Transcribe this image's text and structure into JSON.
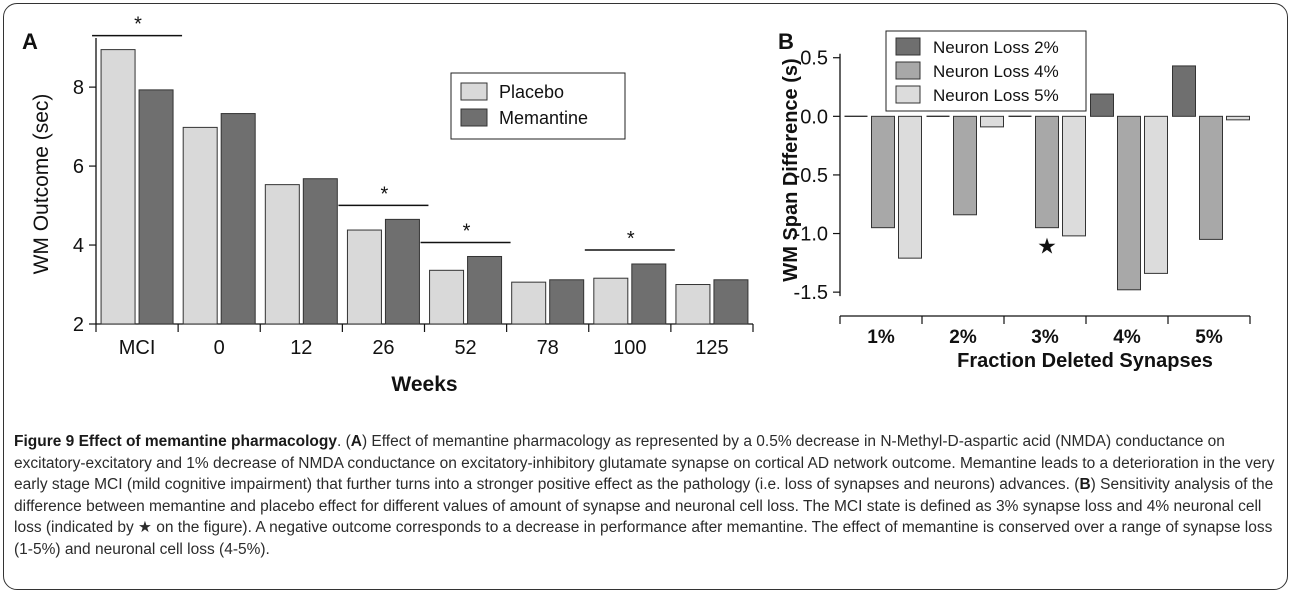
{
  "chart_data": [
    {
      "type": "bar",
      "panel_label": "A",
      "categories": [
        "MCI",
        "0",
        "12",
        "26",
        "52",
        "78",
        "100",
        "125"
      ],
      "series": [
        {
          "name": "Placebo",
          "color": "#d9d9d9",
          "values": [
            8.95,
            6.98,
            5.53,
            4.38,
            3.36,
            3.06,
            3.16,
            3.0
          ]
        },
        {
          "name": "Memantine",
          "color": "#6f6f6f",
          "values": [
            7.93,
            7.33,
            5.68,
            4.65,
            3.71,
            3.12,
            3.52,
            3.12
          ]
        }
      ],
      "xlabel": "Weeks",
      "ylabel": "WM Outcome (sec)",
      "ylim": [
        2,
        9.7
      ],
      "yticks": [
        "2",
        "4",
        "6",
        "8"
      ],
      "legend_position": "upper-right",
      "significance": [
        {
          "category": "MCI",
          "label": "*"
        },
        {
          "category": "26",
          "label": "*"
        },
        {
          "category": "52",
          "label": "*"
        },
        {
          "category": "100",
          "label": "*"
        }
      ]
    },
    {
      "type": "bar",
      "panel_label": "B",
      "categories": [
        "1%",
        "2%",
        "3%",
        "4%",
        "5%"
      ],
      "series": [
        {
          "name": "Neuron Loss 2%",
          "color": "#6f6f6f",
          "values": [
            0.0,
            0.0,
            0.0,
            0.19,
            0.43
          ]
        },
        {
          "name": "Neuron Loss 4%",
          "color": "#a8a8a8",
          "values": [
            -0.95,
            -0.84,
            -0.95,
            -1.48,
            -1.05
          ]
        },
        {
          "name": "Neuron Loss 5%",
          "color": "#dcdcdc",
          "values": [
            -1.21,
            -0.09,
            -1.02,
            -1.34,
            -0.03
          ]
        }
      ],
      "xlabel": "Fraction Deleted Synapses",
      "ylabel": "WM Span Difference (s)",
      "ylim": [
        -1.55,
        0.6
      ],
      "yticks": [
        "-1.5",
        "-1.0",
        "-0.5",
        "0.0",
        "0.5"
      ],
      "legend_position": "upper-left",
      "marker": {
        "category": "3%",
        "series": "Neuron Loss 4%",
        "label": "★"
      }
    }
  ],
  "caption": {
    "title": "Figure 9 Effect of memantine pharmacology",
    "segments": [
      {
        "t": ". (",
        "b": false
      },
      {
        "t": "A",
        "b": true
      },
      {
        "t": ") Effect of memantine pharmacology as represented by a 0.5% decrease in N-Methyl-D-aspartic acid (NMDA) conductance on excitatory-excitatory and 1% decrease of NMDA conductance on excitatory-inhibitory glutamate synapse on cortical AD network outcome. Memantine leads to a deterioration in the very early stage MCI (mild cognitive impairment) that further turns into a stronger positive effect as the pathology (i.e. loss of synapses and neurons) advances. (",
        "b": false
      },
      {
        "t": "B",
        "b": true
      },
      {
        "t": ") Sensitivity analysis of the difference between memantine and placebo effect for different values of amount of synapse and neuronal cell loss. The MCI state is defined as 3% synapse loss and 4% neuronal cell loss (indicated by ★ on the figure). A negative outcome corresponds to a decrease in performance after memantine. The effect of memantine is conserved over a range of synapse loss (1-5%) and neuronal cell loss (4-5%).",
        "b": false
      }
    ]
  }
}
